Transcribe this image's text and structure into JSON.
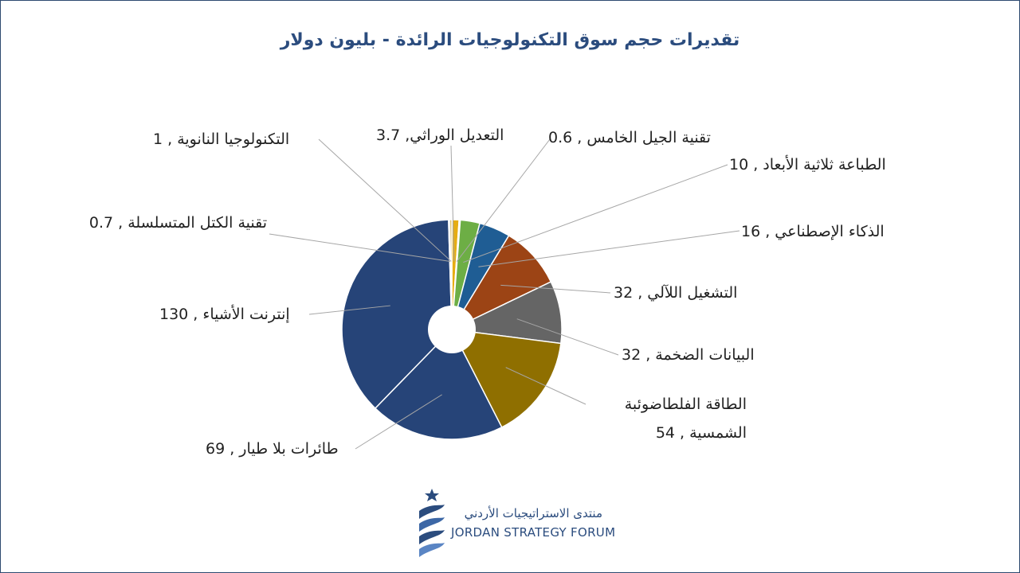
{
  "chart_data": {
    "type": "pie",
    "title": "تقديرات حجم سوق التكنولوجيات الرائدة - بليون دولار",
    "categories": [
      "التعديل الوراثي",
      "تقنية الجيل الخامس",
      "الطباعة ثلاثية الأبعاد",
      "الذكاء الإصطناعي",
      "التشغيل اللآلي",
      "البيانات الضخمة",
      "الطاقة الفلطاضوئبة الشمسية",
      "طائرات بلا طيار",
      "إنترنت الأشياء",
      "تقنية الكتل المتسلسلة",
      "التكنولوجيا النانوية"
    ],
    "values": [
      3.7,
      0.6,
      10,
      16,
      32,
      32,
      54,
      69,
      130,
      0.7,
      1
    ],
    "colors": [
      "#e6ad12",
      "#4a72c4",
      "#6dae45",
      "#1f5d94",
      "#9c4415",
      "#656565",
      "#8f6f00",
      "#264478",
      "#264478",
      "#5b9bd5",
      "#c9a22a"
    ],
    "data_labels": [
      "التعديل الوراثي, 3.7",
      "تقنية الجيل الخامس , 0.6",
      "الطباعة ثلاثية الأبعاد , 10",
      "الذكاء الإصطناعي , 16",
      "التشغيل اللآلي , 32",
      "البيانات الضخمة , 32",
      "الطاقة الفلطاضوئبة الشمسية , 54",
      "طائرات بلا طيار , 69",
      "إنترنت الأشياء , 130",
      "تقنية الكتل المتسلسلة , 0.7",
      "التكنولوجيا النانوية , 1"
    ],
    "hole": true
  },
  "logo": {
    "arabic_text": "منتدى الاستراتيجيات الأردني",
    "english_text": "JORDAN STRATEGY FORUM",
    "color": "#2b4c7e"
  },
  "frame_color": "#2e4a70"
}
